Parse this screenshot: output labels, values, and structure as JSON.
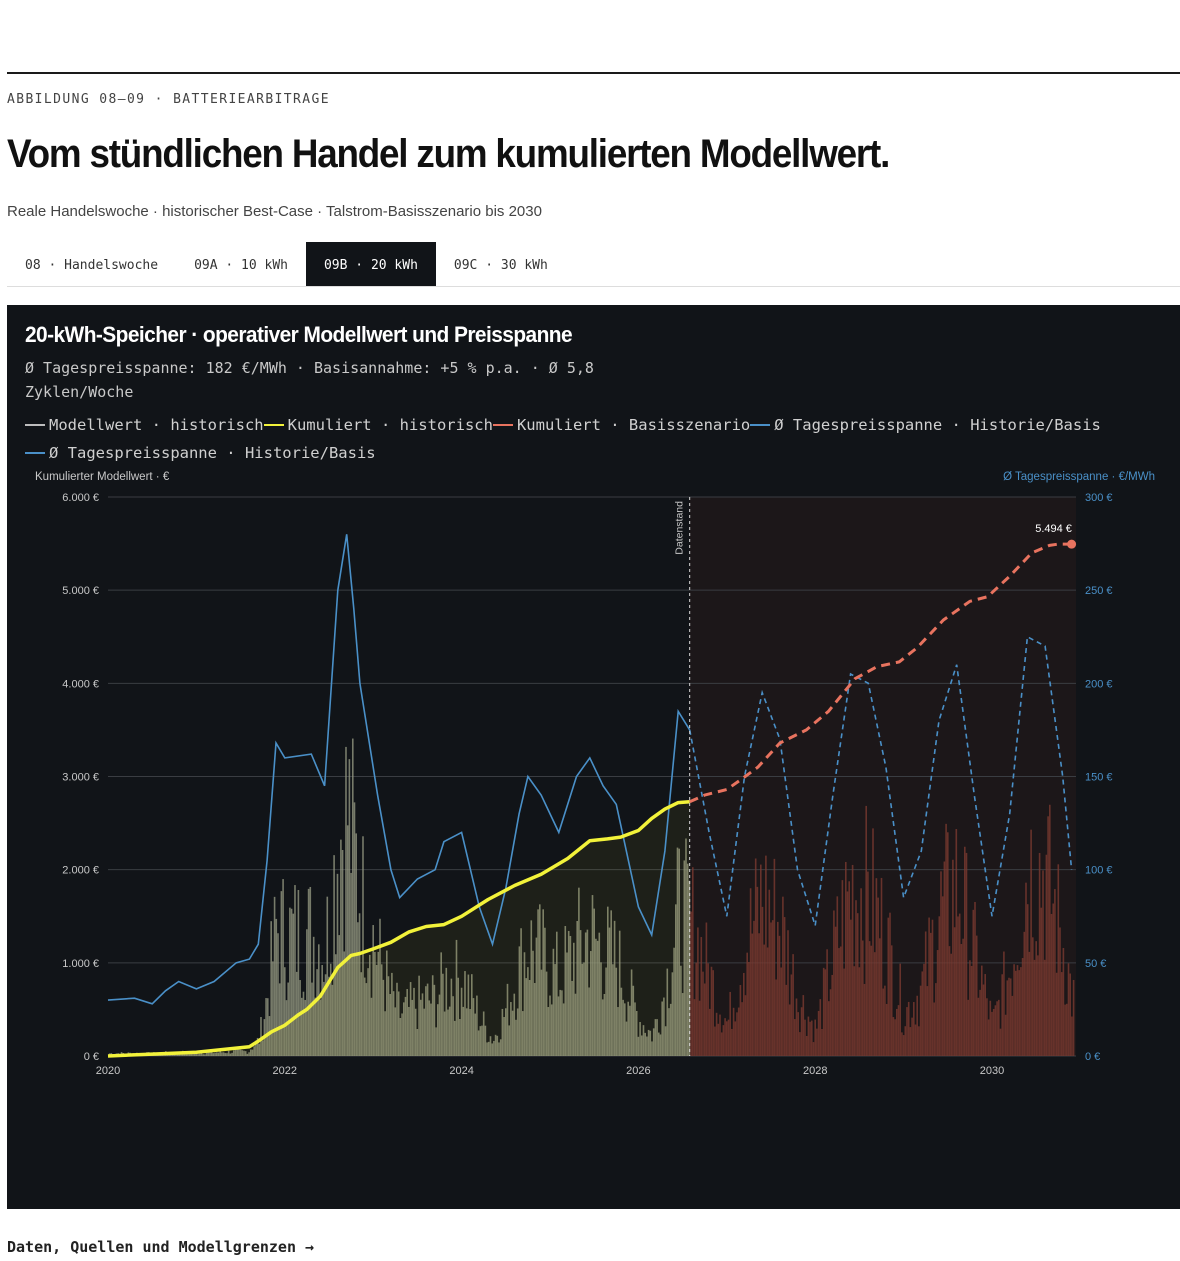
{
  "header": {
    "eyebrow": "ABBILDUNG 08–09 · BATTERIEARBITRAGE",
    "title": "Vom stündlichen Handel zum kumulierten Modellwert.",
    "subtitle": "Reale Handelswoche · historischer Best-Case · Talstrom-Basisszenario bis 2030"
  },
  "tabs": [
    {
      "label": "08 · Handelswoche",
      "active": false
    },
    {
      "label": "09A · 10 kWh",
      "active": false
    },
    {
      "label": "09B · 20 kWh",
      "active": true
    },
    {
      "label": "09C · 30 kWh",
      "active": false
    }
  ],
  "panel": {
    "title": "20-kWh-Speicher · operativer Modellwert und Preisspanne",
    "info": "Ø Tagespreisspanne: 182 €/MWh · Basisannahme: +5 % p.a. · Ø 5,8 Zyklen/Woche"
  },
  "legend": [
    {
      "label": "Modellwert · historisch",
      "color": "#bdbdbd"
    },
    {
      "label": "Kumuliert · historisch",
      "color": "#f2f23a"
    },
    {
      "label": "Kumuliert · Basisszenario",
      "color": "#e8735f"
    },
    {
      "label": "Ø Tagespreisspanne · Historie/Basis",
      "color": "#4a90c8"
    },
    {
      "label": "Ø Tagespreisspanne · Historie/Basis",
      "color": "#4a90c8"
    }
  ],
  "footer": {
    "link": "Daten, Quellen und Modellgrenzen →"
  },
  "chart_data": {
    "type": "line",
    "y_left_label": "Kumulierter Modellwert · €",
    "y_right_label": "Ø Tagespreisspanne · €/MWh",
    "y_left_ticks": [
      "0 €",
      "1.000 €",
      "2.000 €",
      "3.000 €",
      "4.000 €",
      "5.000 €",
      "6.000 €"
    ],
    "y_right_ticks": [
      "0 €",
      "50 €",
      "100 €",
      "150 €",
      "200 €",
      "250 €",
      "300 €"
    ],
    "x_ticks": [
      "2020",
      "2022",
      "2024",
      "2026",
      "2028",
      "2030"
    ],
    "ylim_left": [
      0,
      6000
    ],
    "ylim_right": [
      0,
      300
    ],
    "xlim": [
      2020.0,
      2030.95
    ],
    "marker_label": "Datenstand",
    "marker_x": 2026.58,
    "end_label": "5.494 €",
    "colors": {
      "bars_hist": "#9a9d86",
      "bars_proj": "#7a3a30",
      "cum_hist": "#f2f23a",
      "cum_proj": "#e8735f",
      "spread": "#4a90c8",
      "forecast_bg": "#1c1719"
    },
    "cumulative_historical": {
      "x": [
        2020.0,
        2020.5,
        2021.0,
        2021.3,
        2021.6,
        2021.7,
        2021.85,
        2022.0,
        2022.15,
        2022.25,
        2022.4,
        2022.6,
        2022.75,
        2022.85,
        2023.0,
        2023.2,
        2023.4,
        2023.6,
        2023.8,
        2024.0,
        2024.3,
        2024.6,
        2024.9,
        2025.2,
        2025.45,
        2025.65,
        2025.8,
        2026.0,
        2026.15,
        2026.3,
        2026.45,
        2026.58
      ],
      "y": [
        0,
        20,
        40,
        70,
        100,
        160,
        260,
        330,
        440,
        500,
        640,
        950,
        1080,
        1100,
        1150,
        1220,
        1330,
        1390,
        1410,
        1500,
        1680,
        1830,
        1950,
        2120,
        2310,
        2330,
        2350,
        2420,
        2550,
        2650,
        2720,
        2730
      ]
    },
    "cumulative_basisszenario": {
      "x": [
        2026.58,
        2026.75,
        2027.0,
        2027.15,
        2027.35,
        2027.6,
        2027.9,
        2028.15,
        2028.45,
        2028.7,
        2028.95,
        2029.15,
        2029.45,
        2029.75,
        2029.95,
        2030.2,
        2030.45,
        2030.65,
        2030.75,
        2030.9
      ],
      "y": [
        2730,
        2800,
        2860,
        2960,
        3100,
        3360,
        3500,
        3700,
        4050,
        4180,
        4230,
        4380,
        4680,
        4880,
        4930,
        5150,
        5400,
        5480,
        5494,
        5494
      ]
    },
    "spread_historical": {
      "x": [
        2020.0,
        2020.3,
        2020.5,
        2020.65,
        2020.8,
        2021.0,
        2021.2,
        2021.45,
        2021.6,
        2021.7,
        2021.8,
        2021.9,
        2022.0,
        2022.3,
        2022.45,
        2022.6,
        2022.7,
        2022.78,
        2022.85,
        2023.05,
        2023.2,
        2023.3,
        2023.5,
        2023.7,
        2023.8,
        2024.0,
        2024.2,
        2024.35,
        2024.5,
        2024.65,
        2024.75,
        2024.9,
        2025.1,
        2025.3,
        2025.45,
        2025.6,
        2025.75,
        2026.0,
        2026.15,
        2026.3,
        2026.45,
        2026.58
      ],
      "y": [
        30,
        31,
        28,
        35,
        40,
        36,
        40,
        50,
        52,
        60,
        105,
        168,
        160,
        162,
        145,
        250,
        280,
        240,
        200,
        140,
        100,
        85,
        95,
        100,
        115,
        120,
        80,
        60,
        90,
        130,
        150,
        140,
        120,
        150,
        160,
        145,
        135,
        80,
        65,
        110,
        185,
        175
      ]
    },
    "spread_basisszenario": {
      "x": [
        2026.58,
        2026.8,
        2027.0,
        2027.2,
        2027.4,
        2027.6,
        2027.8,
        2028.0,
        2028.2,
        2028.4,
        2028.6,
        2028.8,
        2029.0,
        2029.2,
        2029.4,
        2029.6,
        2029.8,
        2030.0,
        2030.2,
        2030.4,
        2030.6,
        2030.8,
        2030.9
      ],
      "y": [
        175,
        120,
        75,
        150,
        195,
        170,
        100,
        70,
        140,
        205,
        200,
        155,
        85,
        110,
        180,
        210,
        140,
        75,
        130,
        225,
        220,
        150,
        100
      ]
    },
    "bars_note": "Wöchentlicher Modellwert als Balken (Historie / Basisszenario)"
  }
}
